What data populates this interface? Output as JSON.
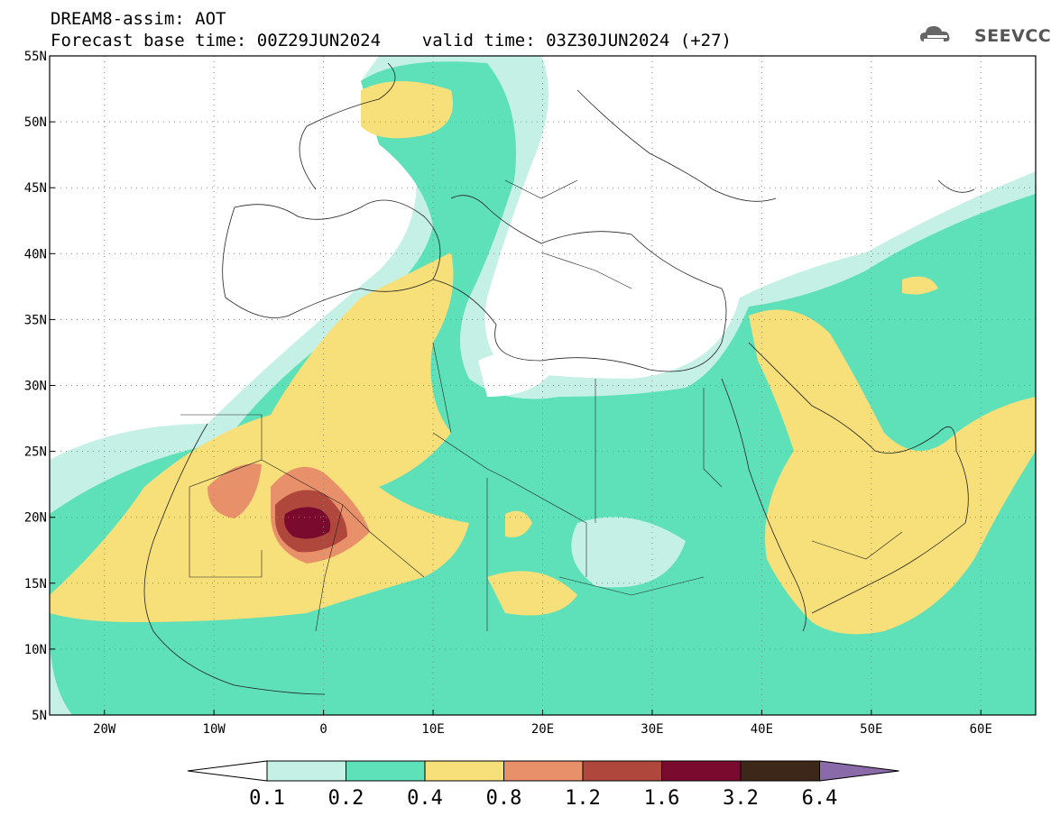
{
  "header": {
    "line1": "DREAM8-assim: AOT",
    "line2": "Forecast base time: 00Z29JUN2024    valid time: 03Z30JUN2024 (+27)"
  },
  "logo": {
    "text": "SEEVCCC",
    "icon": "cloud-logo-icon"
  },
  "map": {
    "lon_range": [
      -25,
      65
    ],
    "lat_range": [
      5,
      55
    ],
    "lat_labels": [
      "55N",
      "50N",
      "45N",
      "40N",
      "35N",
      "30N",
      "25N",
      "20N",
      "15N",
      "10N",
      "5N"
    ],
    "lat_values": [
      55,
      50,
      45,
      40,
      35,
      30,
      25,
      20,
      15,
      10,
      5
    ],
    "lon_labels": [
      "20W",
      "10W",
      "0",
      "10E",
      "20E",
      "30E",
      "40E",
      "50E",
      "60E"
    ],
    "lon_values": [
      -20,
      -10,
      0,
      10,
      20,
      30,
      40,
      50,
      60
    ],
    "grid": "dotted"
  },
  "colorbar": {
    "labels": [
      "0.1",
      "0.2",
      "0.4",
      "0.8",
      "1.2",
      "1.6",
      "3.2",
      "6.4"
    ],
    "colors": [
      "#ffffff",
      "#c4f0e6",
      "#5ee0b8",
      "#f7e07a",
      "#e8906a",
      "#b0473c",
      "#7a0a2e",
      "#3d2718",
      "#8a6aa8"
    ]
  }
}
